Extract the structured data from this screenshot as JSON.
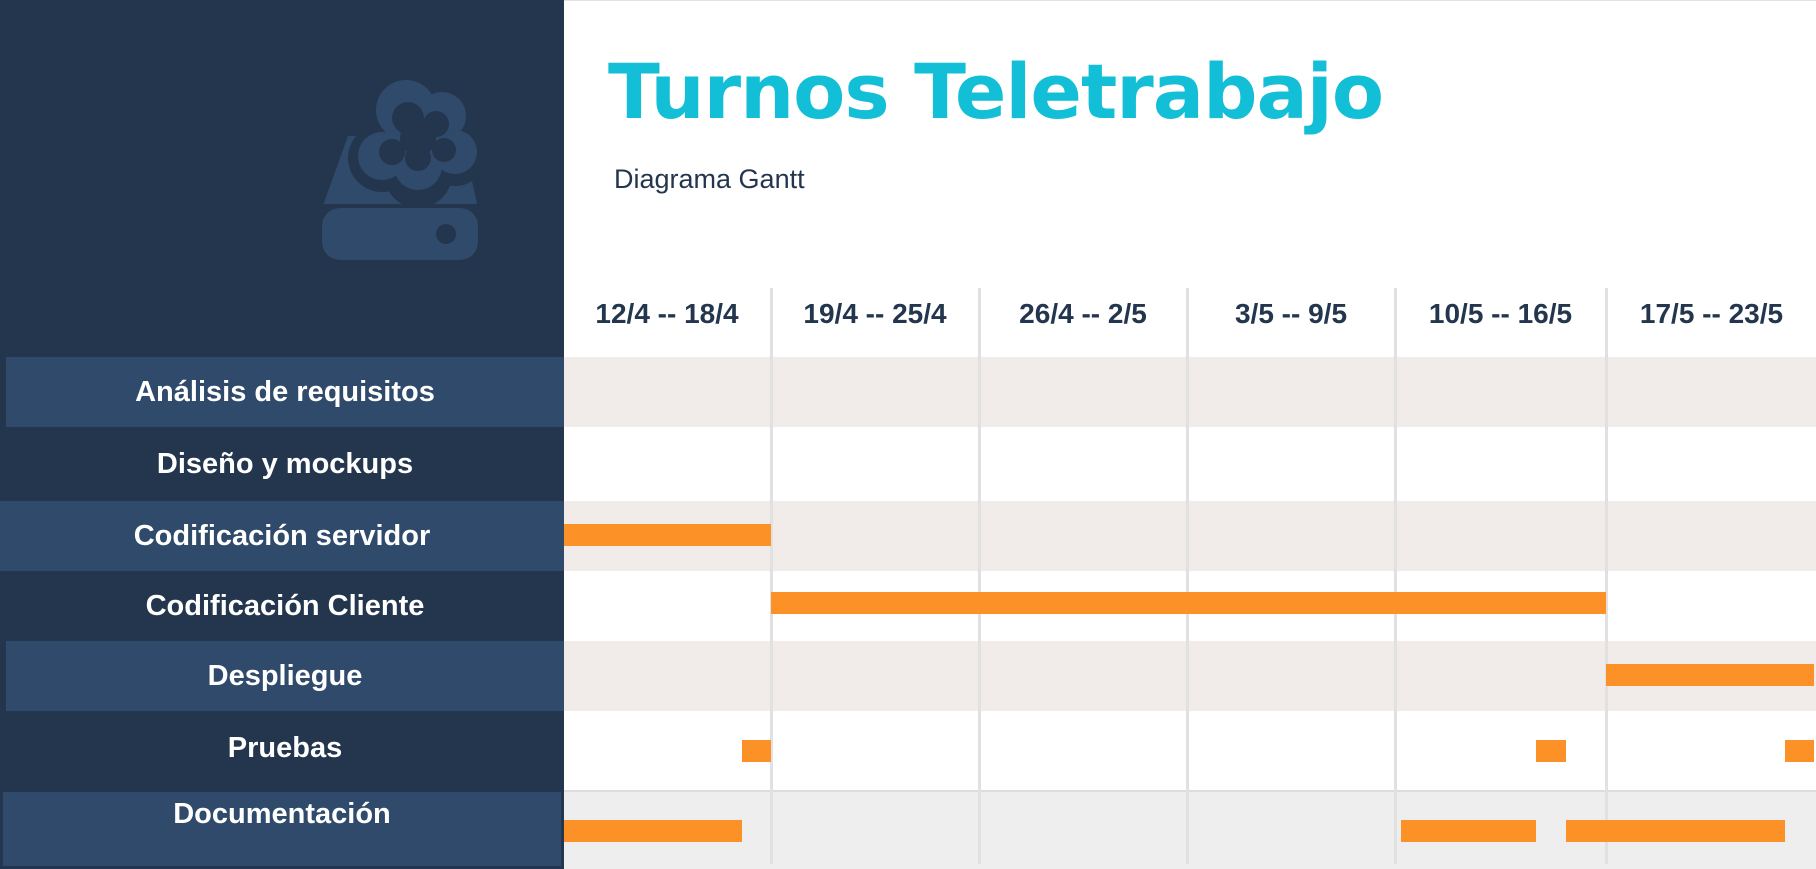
{
  "header": {
    "title": "Turnos Teletrabajo",
    "subtitle": "Diagrama Gantt"
  },
  "logo": {
    "icon": "cloud-drive-icon",
    "color": "#2f4a6a"
  },
  "colors": {
    "sidebar": "#23364e",
    "task_label_bg": "#2f4a6a",
    "accent_title": "#13bfd6",
    "bar": "#fc9128",
    "row_alt": "#f1ece9",
    "grid_line": "#e1e1e1"
  },
  "weeks": [
    "12/4 -- 18/4",
    "19/4 -- 25/4",
    "26/4 -- 2/5",
    "3/5 -- 9/5",
    "10/5 -- 16/5",
    "17/5 -- 23/5"
  ],
  "tasks": [
    {
      "label": "Análisis de requisitos"
    },
    {
      "label": "Diseño y mockups"
    },
    {
      "label": "Codificación servidor"
    },
    {
      "label": "Codificación Cliente"
    },
    {
      "label": "Despliegue"
    },
    {
      "label": "Pruebas"
    },
    {
      "label": "Documentación"
    }
  ],
  "bars": [
    {
      "task": 2,
      "start_week": 0,
      "end_week": 1
    },
    {
      "task": 3,
      "start_week": 1,
      "end_week": 5
    },
    {
      "task": 4,
      "start_week": 5,
      "end_week": 6
    },
    {
      "task": 5,
      "start_week": 0.86,
      "end_week": 1
    },
    {
      "task": 5,
      "start_week": 4.67,
      "end_week": 4.81
    },
    {
      "task": 5,
      "start_week": 5.86,
      "end_week": 6
    },
    {
      "task": 6,
      "start_week": 0,
      "end_week": 0.86
    },
    {
      "task": 6,
      "start_week": 4.03,
      "end_week": 4.67
    },
    {
      "task": 6,
      "start_week": 4.81,
      "end_week": 5.86
    }
  ]
}
